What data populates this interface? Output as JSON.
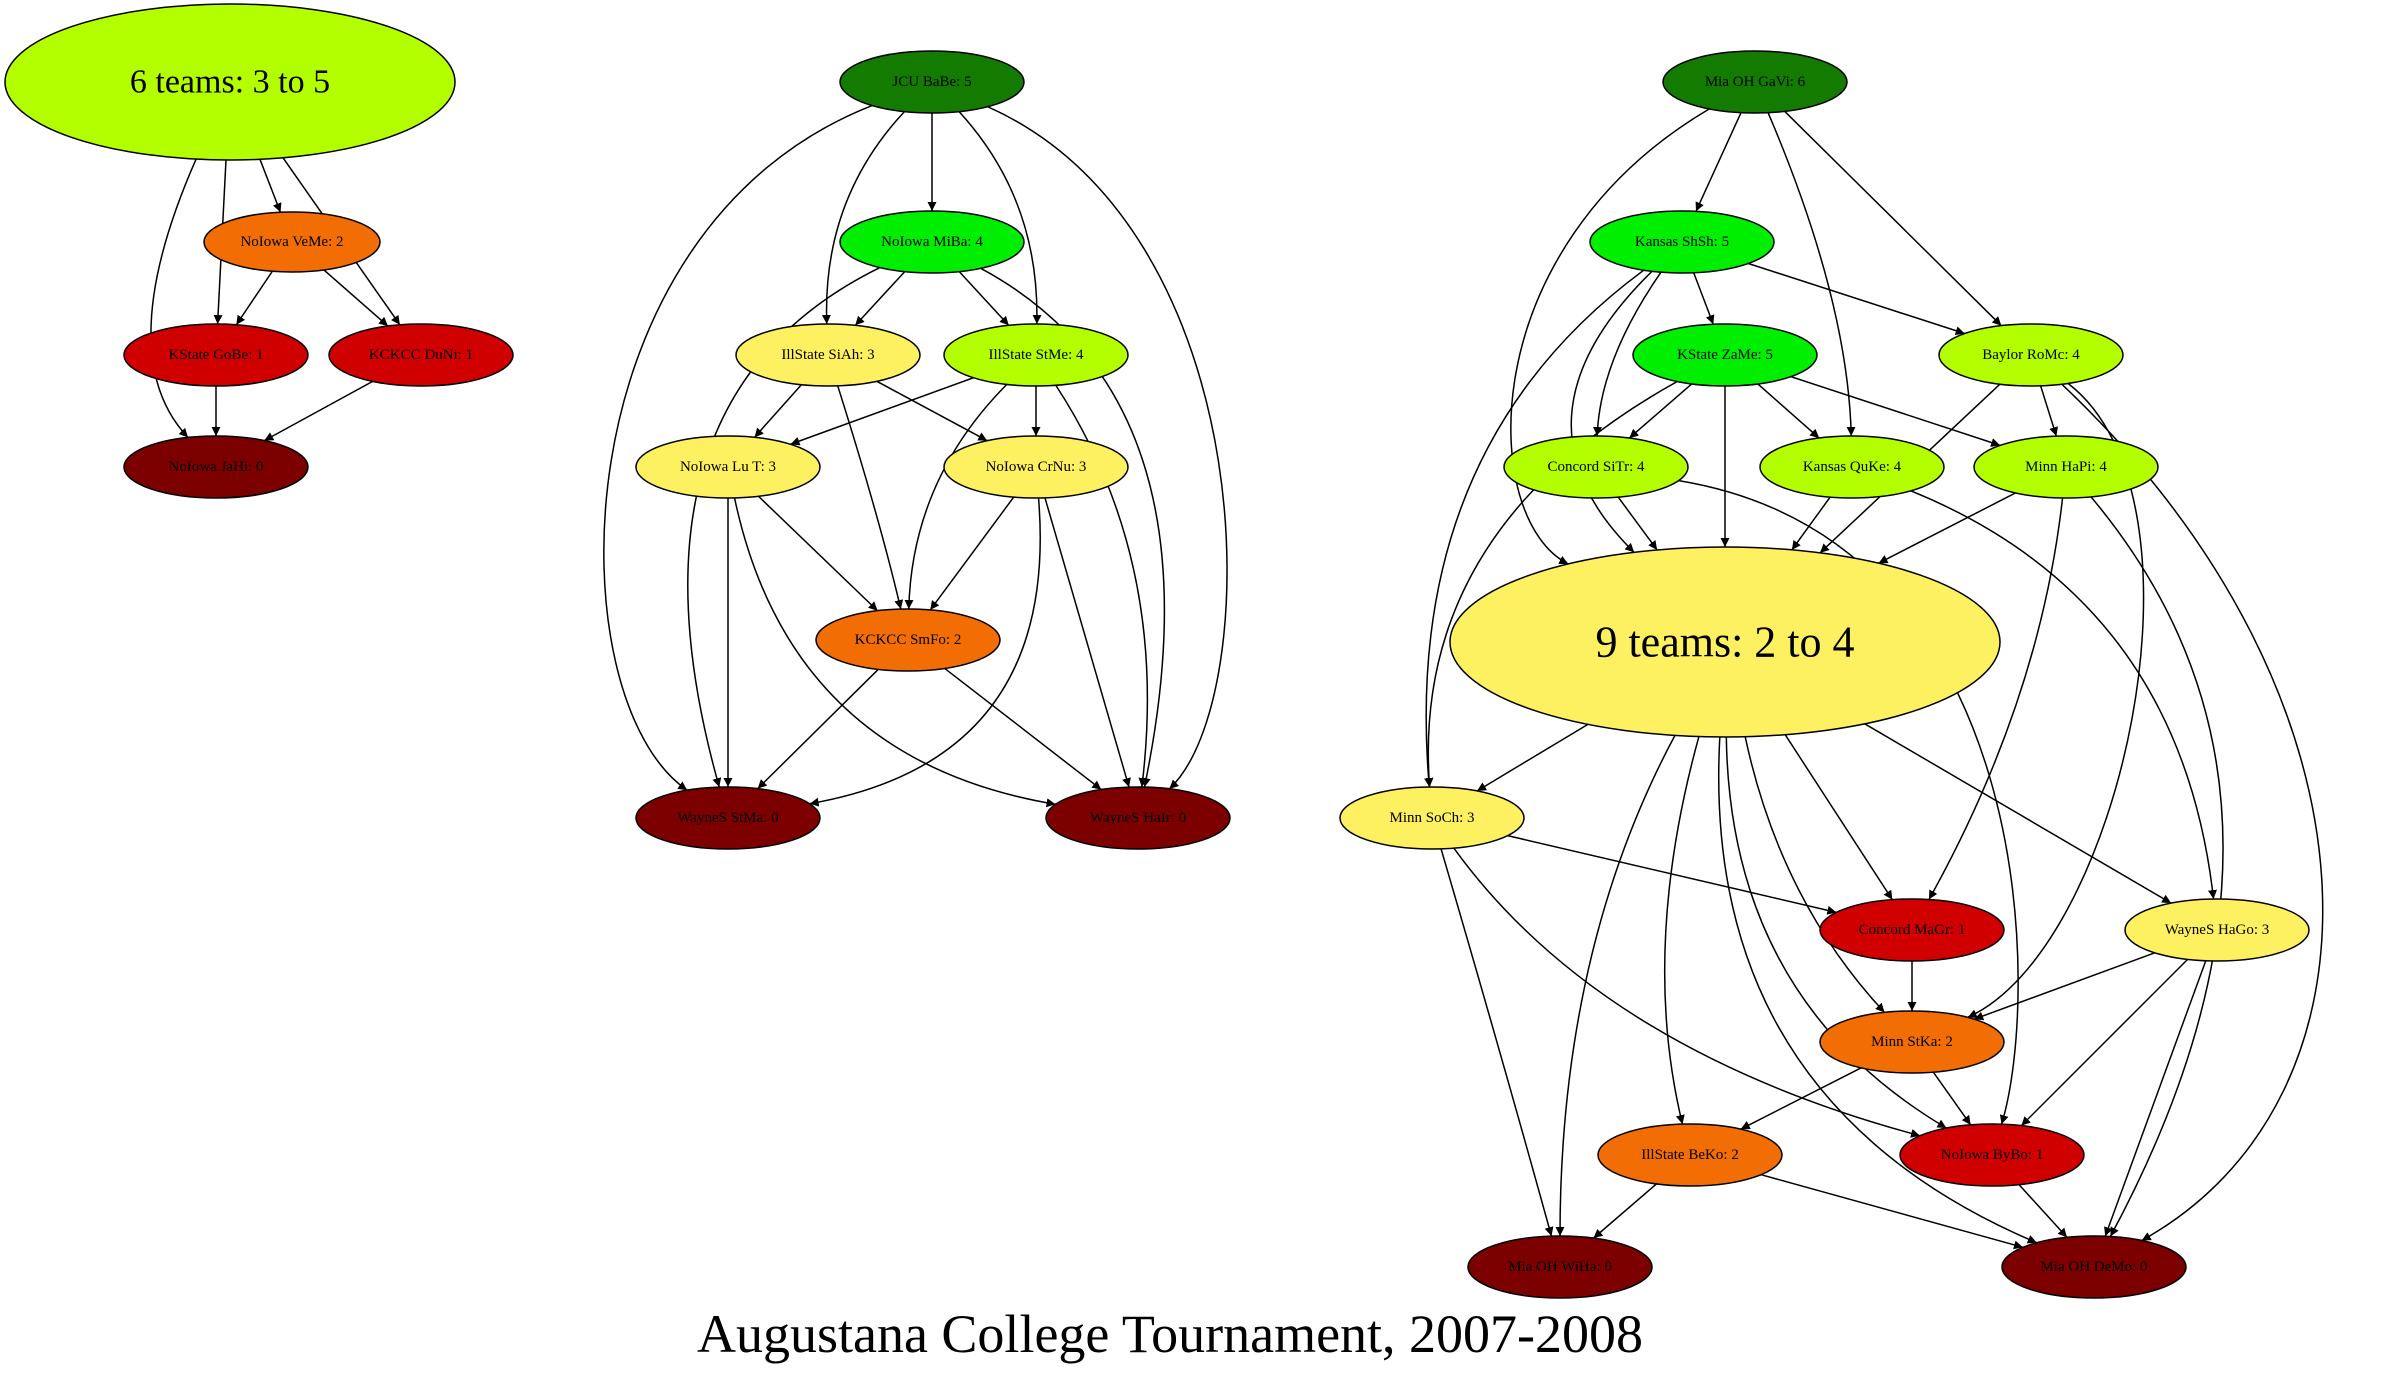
{
  "title": "Augustana College Tournament, 2007-2008",
  "colors": {
    "darkgreen": "#137b00",
    "green": "#00ee00",
    "lime": "#b3ff00",
    "yellow": "#fdf061",
    "orange": "#f36d05",
    "red": "#d00000",
    "maroon": "#7c0000",
    "edge": "#000000"
  },
  "nodes": [
    {
      "id": "g6",
      "label": "6 teams: 3 to 5",
      "color": "lime"
    },
    {
      "id": "nivm",
      "label": "NoIowa VeMe: 2",
      "color": "orange"
    },
    {
      "id": "ksgb",
      "label": "KState GoBe: 1",
      "color": "red"
    },
    {
      "id": "kcdn",
      "label": "KCKCC DuNi: 1",
      "color": "red"
    },
    {
      "id": "nijh",
      "label": "NoIowa JaHi: 0",
      "color": "maroon"
    },
    {
      "id": "jcub",
      "label": "JCU BaBe: 5",
      "color": "darkgreen"
    },
    {
      "id": "nimb",
      "label": "NoIowa MiBa: 4",
      "color": "green"
    },
    {
      "id": "issa",
      "label": "IllState SiAh: 3",
      "color": "yellow"
    },
    {
      "id": "isst",
      "label": "IllState StMe: 4",
      "color": "lime"
    },
    {
      "id": "nilt",
      "label": "NoIowa Lu T: 3",
      "color": "yellow"
    },
    {
      "id": "nicn",
      "label": "NoIowa CrNu: 3",
      "color": "yellow"
    },
    {
      "id": "kcsf",
      "label": "KCKCC SmFo: 2",
      "color": "orange"
    },
    {
      "id": "wssm",
      "label": "WayneS StMa: 0",
      "color": "maroon"
    },
    {
      "id": "wsha",
      "label": "WayneS HaIr: 0",
      "color": "maroon"
    },
    {
      "id": "mogv",
      "label": "Mia OH GaVi: 6",
      "color": "darkgreen"
    },
    {
      "id": "kssh",
      "label": "Kansas ShSh: 5",
      "color": "green"
    },
    {
      "id": "kszm",
      "label": "KState ZaMe: 5",
      "color": "green"
    },
    {
      "id": "baro",
      "label": "Baylor RoMc: 4",
      "color": "lime"
    },
    {
      "id": "cost",
      "label": "Concord SiTr: 4",
      "color": "lime"
    },
    {
      "id": "kaqk",
      "label": "Kansas QuKe: 4",
      "color": "lime"
    },
    {
      "id": "mihp",
      "label": "Minn HaPi: 4",
      "color": "lime"
    },
    {
      "id": "g9",
      "label": "9 teams: 2 to 4",
      "color": "yellow"
    },
    {
      "id": "misc",
      "label": "Minn SoCh: 3",
      "color": "yellow"
    },
    {
      "id": "comg",
      "label": "Concord MaGr: 1",
      "color": "red"
    },
    {
      "id": "wshg",
      "label": "WayneS HaGo: 3",
      "color": "yellow"
    },
    {
      "id": "misk",
      "label": "Minn StKa: 2",
      "color": "orange"
    },
    {
      "id": "isbk",
      "label": "IllState BeKo: 2",
      "color": "orange"
    },
    {
      "id": "niby",
      "label": "NoIowa ByBo: 1",
      "color": "red"
    },
    {
      "id": "mowh",
      "label": "Mia OH WiHa: 0",
      "color": "maroon"
    },
    {
      "id": "modm",
      "label": "Mia OH DeMo: 0",
      "color": "maroon"
    }
  ],
  "edges": [
    [
      "g6",
      "nivm"
    ],
    [
      "g6",
      "ksgb"
    ],
    [
      "g6",
      "kcdn"
    ],
    [
      "g6",
      "nijh"
    ],
    [
      "nivm",
      "ksgb"
    ],
    [
      "nivm",
      "kcdn"
    ],
    [
      "ksgb",
      "nijh"
    ],
    [
      "kcdn",
      "nijh"
    ],
    [
      "jcub",
      "nimb"
    ],
    [
      "jcub",
      "issa"
    ],
    [
      "jcub",
      "isst"
    ],
    [
      "jcub",
      "wssm"
    ],
    [
      "jcub",
      "wsha"
    ],
    [
      "nimb",
      "issa"
    ],
    [
      "nimb",
      "isst"
    ],
    [
      "nimb",
      "wssm"
    ],
    [
      "nimb",
      "wsha"
    ],
    [
      "issa",
      "nilt"
    ],
    [
      "issa",
      "nicn"
    ],
    [
      "issa",
      "kcsf"
    ],
    [
      "isst",
      "nilt"
    ],
    [
      "isst",
      "nicn"
    ],
    [
      "isst",
      "kcsf"
    ],
    [
      "isst",
      "wsha"
    ],
    [
      "nilt",
      "kcsf"
    ],
    [
      "nilt",
      "wssm"
    ],
    [
      "nilt",
      "wsha"
    ],
    [
      "nicn",
      "kcsf"
    ],
    [
      "nicn",
      "wssm"
    ],
    [
      "nicn",
      "wsha"
    ],
    [
      "kcsf",
      "wssm"
    ],
    [
      "kcsf",
      "wsha"
    ],
    [
      "mogv",
      "kssh"
    ],
    [
      "mogv",
      "kaqk"
    ],
    [
      "mogv",
      "baro"
    ],
    [
      "mogv",
      "g9"
    ],
    [
      "kssh",
      "kszm"
    ],
    [
      "kssh",
      "baro"
    ],
    [
      "kssh",
      "cost"
    ],
    [
      "kssh",
      "g9"
    ],
    [
      "kssh",
      "misc"
    ],
    [
      "kszm",
      "cost"
    ],
    [
      "kszm",
      "kaqk"
    ],
    [
      "kszm",
      "mihp"
    ],
    [
      "kszm",
      "g9"
    ],
    [
      "kszm",
      "misc"
    ],
    [
      "baro",
      "mihp"
    ],
    [
      "baro",
      "g9"
    ],
    [
      "baro",
      "misk"
    ],
    [
      "baro",
      "modm"
    ],
    [
      "cost",
      "g9"
    ],
    [
      "cost",
      "niby"
    ],
    [
      "kaqk",
      "g9"
    ],
    [
      "kaqk",
      "wshg"
    ],
    [
      "mihp",
      "g9"
    ],
    [
      "mihp",
      "comg"
    ],
    [
      "mihp",
      "modm"
    ],
    [
      "g9",
      "misc"
    ],
    [
      "g9",
      "comg"
    ],
    [
      "g9",
      "wshg"
    ],
    [
      "g9",
      "misk"
    ],
    [
      "g9",
      "isbk"
    ],
    [
      "g9",
      "niby"
    ],
    [
      "g9",
      "mowh"
    ],
    [
      "g9",
      "modm"
    ],
    [
      "misc",
      "comg"
    ],
    [
      "misc",
      "niby"
    ],
    [
      "misc",
      "mowh"
    ],
    [
      "comg",
      "misk"
    ],
    [
      "wshg",
      "misk"
    ],
    [
      "wshg",
      "niby"
    ],
    [
      "wshg",
      "modm"
    ],
    [
      "misk",
      "isbk"
    ],
    [
      "misk",
      "niby"
    ],
    [
      "isbk",
      "mowh"
    ],
    [
      "isbk",
      "modm"
    ],
    [
      "niby",
      "modm"
    ]
  ]
}
